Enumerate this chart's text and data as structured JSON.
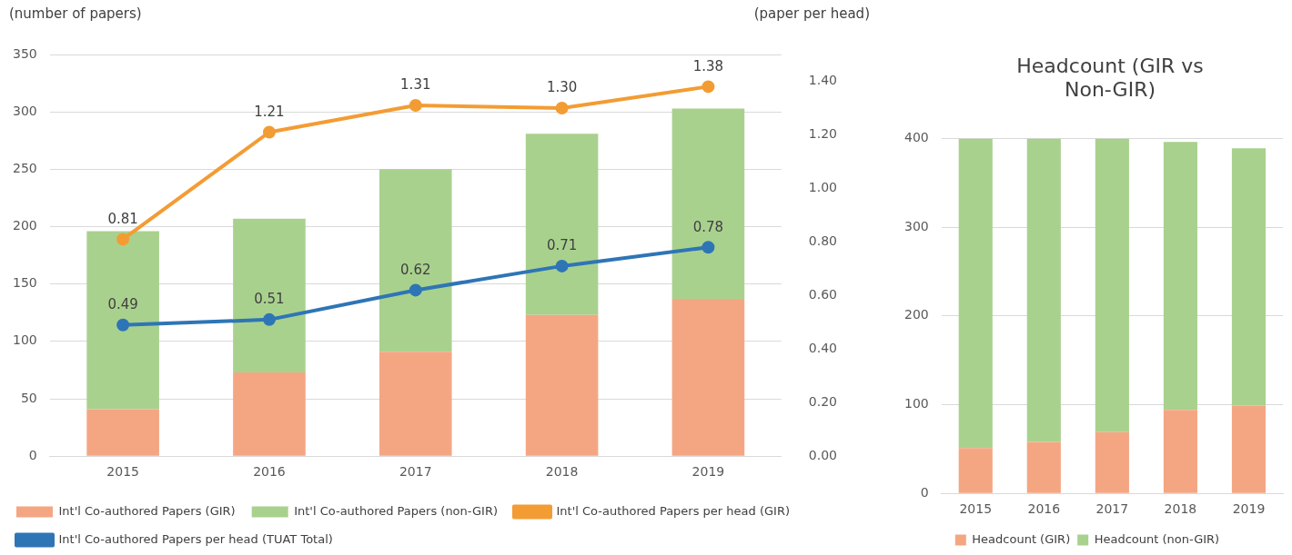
{
  "chart_data": [
    {
      "type": "bar",
      "ylabel": "(number of papers)",
      "y2label": "(paper per head)",
      "categories": [
        "2015",
        "2016",
        "2017",
        "2018",
        "2019"
      ],
      "stacked": true,
      "ylim": [
        0,
        350
      ],
      "yticks": [
        0,
        50,
        100,
        150,
        200,
        250,
        300,
        350
      ],
      "y2lim": [
        0,
        1.5
      ],
      "y2ticks": [
        {
          "value": 0,
          "label": "0.00"
        },
        {
          "value": 0.2,
          "label": "0.20"
        },
        {
          "value": 0.4,
          "label": "0.40"
        },
        {
          "value": 0.6,
          "label": "0.60"
        },
        {
          "value": 0.8,
          "label": "0.80"
        },
        {
          "value": 1,
          "label": "1.00"
        },
        {
          "value": 1.2,
          "label": "1.20"
        },
        {
          "value": 1.4,
          "label": "1.40"
        }
      ],
      "grid": "y",
      "legend": "bottom",
      "series": [
        {
          "name": "Int'l Co-authored Papers (GIR)",
          "color": "#f4a683",
          "values": [
            41,
            73,
            91,
            123,
            137
          ]
        },
        {
          "name": "Int'l Co-authored Papers (non-GIR)",
          "color": "#a9d18e",
          "values": [
            155,
            134,
            159,
            158,
            166
          ]
        },
        {
          "type": "line",
          "axis": "y2",
          "marker": "circle",
          "name": "Int'l Co-authored Papers per head (GIR)",
          "color": "#f39c34",
          "values": [
            0.81,
            1.21,
            1.31,
            1.3,
            1.38
          ],
          "value_labels": [
            "0.81",
            "1.21",
            "1.31",
            "1.30",
            "1.38"
          ]
        },
        {
          "type": "line",
          "axis": "y2",
          "marker": "circle",
          "name": "Int'l Co-authored Papers per head (TUAT Total)",
          "color": "#2e75b6",
          "values": [
            0.49,
            0.51,
            0.62,
            0.71,
            0.78
          ],
          "value_labels": [
            "0.49",
            "0.51",
            "0.62",
            "0.71",
            "0.78"
          ]
        }
      ]
    },
    {
      "type": "bar",
      "title": "Headcount (GIR vs Non-GIR)",
      "categories": [
        "2015",
        "2016",
        "2017",
        "2018",
        "2019"
      ],
      "stacked": true,
      "ylim": [
        0,
        400
      ],
      "yticks": [
        0,
        100,
        200,
        300,
        400
      ],
      "grid": "y",
      "legend": "bottom",
      "series": [
        {
          "name": "Headcount (GIR)",
          "color": "#f4a683",
          "values": [
            51,
            58,
            69,
            94,
            99
          ]
        },
        {
          "name": "Headcount (non-GIR)",
          "color": "#a9d18e",
          "values": [
            349,
            342,
            331,
            302,
            290
          ]
        }
      ]
    }
  ]
}
